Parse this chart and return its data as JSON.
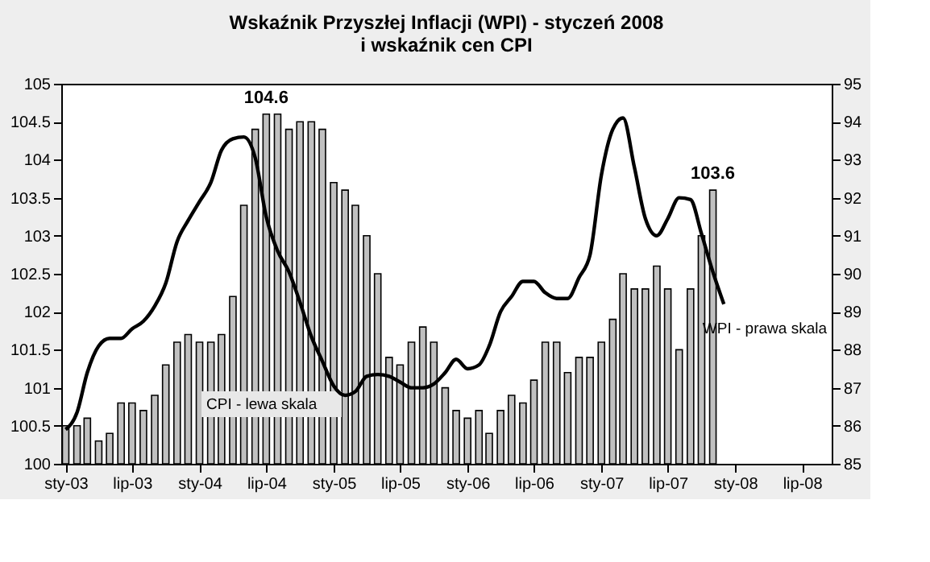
{
  "chart_data": {
    "type": "bar",
    "title": "Wskaźnik Przyszłej Inflacji (WPI) -  styczeń 2008\ni wskaźnik cen CPI",
    "x": [
      "2003-01",
      "2003-02",
      "2003-03",
      "2003-04",
      "2003-05",
      "2003-06",
      "2003-07",
      "2003-08",
      "2003-09",
      "2003-10",
      "2003-11",
      "2003-12",
      "2004-01",
      "2004-02",
      "2004-03",
      "2004-04",
      "2004-05",
      "2004-06",
      "2004-07",
      "2004-08",
      "2004-09",
      "2004-10",
      "2004-11",
      "2004-12",
      "2005-01",
      "2005-02",
      "2005-03",
      "2005-04",
      "2005-05",
      "2005-06",
      "2005-07",
      "2005-08",
      "2005-09",
      "2005-10",
      "2005-11",
      "2005-12",
      "2006-01",
      "2006-02",
      "2006-03",
      "2006-04",
      "2006-05",
      "2006-06",
      "2006-07",
      "2006-08",
      "2006-09",
      "2006-10",
      "2006-11",
      "2006-12",
      "2007-01",
      "2007-02",
      "2007-03",
      "2007-04",
      "2007-05",
      "2007-06",
      "2007-07",
      "2007-08",
      "2007-09",
      "2007-10",
      "2007-11",
      "2007-12"
    ],
    "series": [
      {
        "name": "CPI - lewa skala",
        "color": "#c0c0c0",
        "values": [
          100.5,
          100.5,
          100.6,
          100.3,
          100.4,
          100.8,
          100.8,
          100.7,
          100.9,
          101.3,
          101.6,
          101.7,
          101.6,
          101.6,
          101.7,
          102.2,
          103.4,
          104.4,
          104.6,
          104.6,
          104.4,
          104.5,
          104.5,
          104.4,
          103.7,
          103.6,
          103.4,
          103.0,
          102.5,
          101.4,
          101.3,
          101.6,
          101.8,
          101.6,
          101.0,
          100.7,
          100.6,
          100.7,
          100.4,
          100.7,
          100.9,
          100.8,
          101.1,
          101.6,
          101.6,
          101.2,
          101.4,
          101.4,
          101.6,
          101.9,
          102.5,
          102.3,
          102.3,
          102.6,
          102.3,
          101.5,
          102.3,
          103.0,
          103.6,
          null
        ]
      },
      {
        "name": "WPI - prawa skala",
        "type": "line",
        "axis": "y2",
        "color": "#000000",
        "values": [
          85.9,
          86.35,
          87.4,
          88.1,
          88.3,
          88.3,
          88.55,
          88.75,
          89.15,
          89.75,
          90.85,
          91.4,
          91.9,
          92.4,
          93.25,
          93.55,
          93.6,
          93.05,
          91.5,
          90.6,
          90.05,
          89.25,
          88.35,
          87.7,
          87.05,
          86.8,
          86.9,
          87.3,
          87.35,
          87.3,
          87.15,
          87.0,
          87.0,
          87.1,
          87.4,
          87.75,
          87.5,
          87.6,
          88.1,
          89.0,
          89.4,
          89.8,
          89.8,
          89.5,
          89.35,
          89.35,
          89.9,
          90.5,
          92.6,
          93.8,
          94.1,
          92.8,
          91.45,
          91.0,
          91.45,
          92.0,
          91.95,
          91.05,
          90.05,
          89.2
        ]
      }
    ],
    "annotations": [
      {
        "text": "104.6",
        "x": "2004-07",
        "y": 104.6
      },
      {
        "text": "103.6",
        "x": "2007-11",
        "y": 103.6
      }
    ],
    "xlim": [
      "2002-12-20",
      "2008-09-20"
    ],
    "xticks": [
      {
        "value": "2003-01",
        "label": "sty-03"
      },
      {
        "value": "2003-07",
        "label": "lip-03"
      },
      {
        "value": "2004-01",
        "label": "sty-04"
      },
      {
        "value": "2004-07",
        "label": "lip-04"
      },
      {
        "value": "2005-01",
        "label": "sty-05"
      },
      {
        "value": "2005-07",
        "label": "lip-05"
      },
      {
        "value": "2006-01",
        "label": "sty-06"
      },
      {
        "value": "2006-07",
        "label": "lip-06"
      },
      {
        "value": "2007-01",
        "label": "sty-07"
      },
      {
        "value": "2007-07",
        "label": "lip-07"
      },
      {
        "value": "2008-01",
        "label": "sty-08"
      },
      {
        "value": "2008-07",
        "label": "lip-08"
      }
    ],
    "ylim": [
      100,
      105
    ],
    "yticks": [
      100,
      100.5,
      101,
      101.5,
      102,
      102.5,
      103,
      103.5,
      104,
      104.5,
      105
    ],
    "y2lim": [
      85,
      95
    ],
    "y2ticks": [
      85,
      86,
      87,
      88,
      89,
      90,
      91,
      92,
      93,
      94,
      95
    ],
    "grid": false,
    "marker": "none",
    "line_style": "solid"
  }
}
